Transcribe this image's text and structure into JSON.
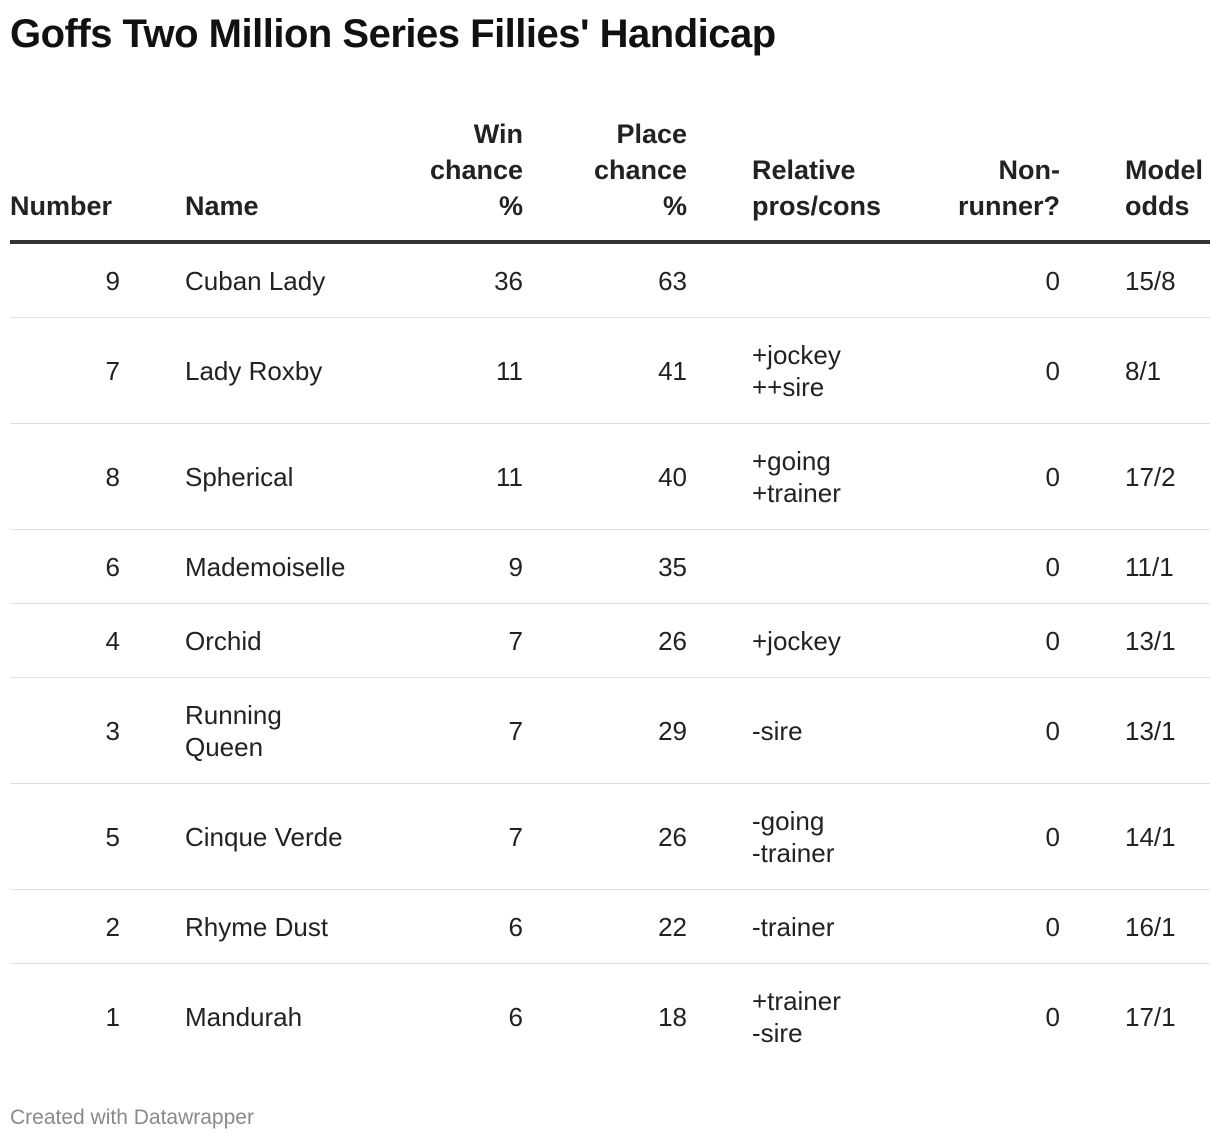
{
  "chart_data": {
    "type": "table",
    "title": "Goffs Two Million Series Fillies' Handicap",
    "columns": [
      {
        "key": "number",
        "label_lines": [
          "Number"
        ]
      },
      {
        "key": "name",
        "label_lines": [
          "Name"
        ]
      },
      {
        "key": "win",
        "label_lines": [
          "Win",
          "chance",
          "%"
        ]
      },
      {
        "key": "place",
        "label_lines": [
          "Place",
          "chance",
          "%"
        ]
      },
      {
        "key": "pros",
        "label_lines": [
          "Relative",
          "pros/cons"
        ]
      },
      {
        "key": "nonrunner",
        "label_lines": [
          "Non-",
          "runner?"
        ]
      },
      {
        "key": "odds",
        "label_lines": [
          "Model",
          "odds"
        ]
      }
    ],
    "rows": [
      {
        "number": "9",
        "name": [
          "Cuban Lady"
        ],
        "win": "36",
        "place": "63",
        "pros": [],
        "nonrunner": "0",
        "odds": "15/8"
      },
      {
        "number": "7",
        "name": [
          "Lady Roxby"
        ],
        "win": "11",
        "place": "41",
        "pros": [
          "+jockey",
          "++sire"
        ],
        "nonrunner": "0",
        "odds": "8/1"
      },
      {
        "number": "8",
        "name": [
          "Spherical"
        ],
        "win": "11",
        "place": "40",
        "pros": [
          "+going",
          "+trainer"
        ],
        "nonrunner": "0",
        "odds": "17/2"
      },
      {
        "number": "6",
        "name": [
          "Mademoiselle"
        ],
        "win": "9",
        "place": "35",
        "pros": [],
        "nonrunner": "0",
        "odds": "11/1"
      },
      {
        "number": "4",
        "name": [
          "Orchid"
        ],
        "win": "7",
        "place": "26",
        "pros": [
          "+jockey"
        ],
        "nonrunner": "0",
        "odds": "13/1"
      },
      {
        "number": "3",
        "name": [
          "Running",
          "Queen"
        ],
        "win": "7",
        "place": "29",
        "pros": [
          "-sire"
        ],
        "nonrunner": "0",
        "odds": "13/1"
      },
      {
        "number": "5",
        "name": [
          "Cinque Verde"
        ],
        "win": "7",
        "place": "26",
        "pros": [
          "-going",
          "-trainer"
        ],
        "nonrunner": "0",
        "odds": "14/1"
      },
      {
        "number": "2",
        "name": [
          "Rhyme Dust"
        ],
        "win": "6",
        "place": "22",
        "pros": [
          "-trainer"
        ],
        "nonrunner": "0",
        "odds": "16/1"
      },
      {
        "number": "1",
        "name": [
          "Mandurah"
        ],
        "win": "6",
        "place": "18",
        "pros": [
          "+trainer",
          "-sire"
        ],
        "nonrunner": "0",
        "odds": "17/1"
      }
    ]
  },
  "footer": {
    "credit": "Created with Datawrapper"
  }
}
